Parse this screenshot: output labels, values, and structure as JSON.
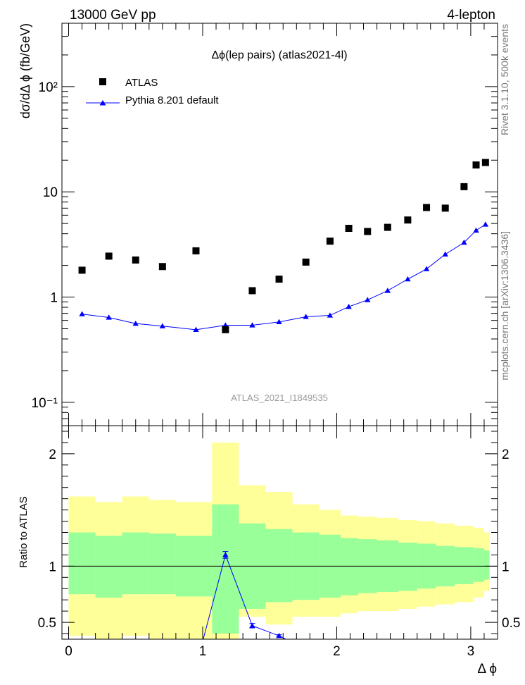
{
  "header": {
    "left": "13000 GeV pp",
    "right": "4-lepton"
  },
  "side_labels": {
    "top": "Rivet 3.1.10,  500k events",
    "bottom": "mcplots.cern.ch [arXiv:1306.3436]"
  },
  "chart_data": [
    {
      "type": "scatter",
      "title": "Δϕ(lep pairs) (atlas2021-4l)",
      "watermark": "ATLAS_2021_I1849535",
      "ylabel": "dσ/dΔ ϕ (fb/GeV)",
      "xlabel": "",
      "yscale": "log",
      "xlim": [
        -0.05,
        3.2
      ],
      "ylim": [
        0.06,
        400
      ],
      "ytick_labels": [
        "10⁻¹",
        "1",
        "10",
        "10²"
      ],
      "legend_position": "top-left",
      "series": [
        {
          "name": "ATLAS",
          "marker": "square",
          "color": "#000000",
          "x": [
            0.1,
            0.3,
            0.5,
            0.7,
            0.95,
            1.17,
            1.37,
            1.57,
            1.77,
            1.95,
            2.09,
            2.23,
            2.38,
            2.53,
            2.67,
            2.81,
            2.95,
            3.04,
            3.11
          ],
          "y": [
            1.8,
            2.45,
            2.25,
            1.95,
            2.75,
            0.49,
            1.15,
            1.48,
            2.15,
            3.4,
            4.5,
            4.2,
            4.6,
            5.4,
            7.1,
            7.0,
            11.2,
            18.0,
            19.0
          ]
        },
        {
          "name": "Pythia 8.201 default",
          "marker": "triangle",
          "color": "#0000ff",
          "x": [
            0.1,
            0.3,
            0.5,
            0.7,
            0.95,
            1.17,
            1.37,
            1.57,
            1.77,
            1.95,
            2.09,
            2.23,
            2.38,
            2.53,
            2.67,
            2.81,
            2.95,
            3.04,
            3.11
          ],
          "y": [
            0.69,
            0.64,
            0.56,
            0.53,
            0.49,
            0.54,
            0.54,
            0.58,
            0.65,
            0.67,
            0.81,
            0.94,
            1.15,
            1.48,
            1.85,
            2.55,
            3.3,
            4.3,
            4.9
          ]
        }
      ]
    },
    {
      "type": "line",
      "ylabel": "Ratio to ATLAS",
      "xlabel": "Δ ϕ",
      "xlim": [
        -0.05,
        3.2
      ],
      "ylim": [
        0.35,
        2.25
      ],
      "xtick_labels": [
        "0",
        "1",
        "2",
        "3"
      ],
      "ytick_labels": [
        "0.5",
        "1",
        "2"
      ],
      "reference_line": 1,
      "bands": {
        "edges": [
          0.0,
          0.2,
          0.4,
          0.6,
          0.8,
          1.07,
          1.27,
          1.47,
          1.67,
          1.87,
          2.03,
          2.16,
          2.3,
          2.46,
          2.6,
          2.74,
          2.88,
          3.02,
          3.1,
          3.14
        ],
        "yellow_low": [
          0.38,
          0.3,
          0.38,
          0.3,
          0.3,
          0.1,
          0.55,
          0.48,
          0.55,
          0.55,
          0.58,
          0.6,
          0.6,
          0.62,
          0.64,
          0.66,
          0.68,
          0.72,
          0.78
        ],
        "yellow_high": [
          1.62,
          1.57,
          1.62,
          1.59,
          1.57,
          2.1,
          1.72,
          1.66,
          1.55,
          1.5,
          1.45,
          1.44,
          1.43,
          1.41,
          1.4,
          1.38,
          1.36,
          1.34,
          1.3
        ],
        "green_low": [
          0.75,
          0.72,
          0.75,
          0.75,
          0.73,
          0.4,
          0.62,
          0.68,
          0.7,
          0.72,
          0.74,
          0.76,
          0.77,
          0.78,
          0.8,
          0.82,
          0.84,
          0.86,
          0.88
        ],
        "green_high": [
          1.3,
          1.27,
          1.3,
          1.29,
          1.27,
          1.55,
          1.38,
          1.33,
          1.3,
          1.28,
          1.25,
          1.24,
          1.23,
          1.21,
          1.2,
          1.18,
          1.17,
          1.16,
          1.14
        ]
      },
      "series": [
        {
          "name": "Pythia 8.201 default",
          "color": "#0000ff",
          "x": [
            1.0,
            1.17,
            1.37,
            1.57,
            1.62
          ],
          "y": [
            0.33,
            1.1,
            0.47,
            0.38,
            0.35
          ],
          "yerr": [
            0,
            0.03,
            0.02,
            0.01,
            0
          ]
        }
      ]
    }
  ]
}
